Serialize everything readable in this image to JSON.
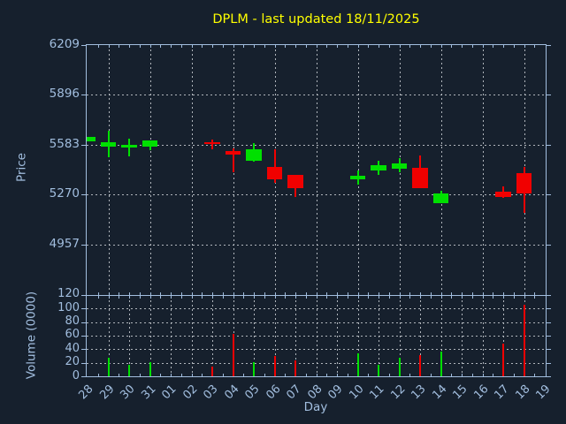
{
  "title": "DPLM - last updated 18/11/2025",
  "chart_data": {
    "type": "candlestick",
    "title": "DPLM - last updated 18/11/2025",
    "xlabel": "Day",
    "grid": true,
    "price_axis": {
      "label": "Price",
      "ticks": [
        6209,
        5896,
        5583,
        5270,
        4957
      ],
      "ylim": [
        4640,
        6209
      ]
    },
    "volume_axis": {
      "label": "Volume (0000)",
      "ticks": [
        120,
        100,
        80,
        60,
        40,
        20,
        0
      ],
      "ylim": [
        0,
        120
      ]
    },
    "days": [
      "28",
      "29",
      "30",
      "31",
      "01",
      "02",
      "03",
      "04",
      "05",
      "06",
      "07",
      "08",
      "09",
      "10",
      "11",
      "12",
      "13",
      "14",
      "15",
      "16",
      "17",
      "18",
      "19"
    ],
    "candles": [
      {
        "day": "28",
        "open": 5605,
        "high": 5632,
        "low": 5605,
        "close": 5632,
        "volume": null,
        "direction": "up"
      },
      {
        "day": "29",
        "open": 5570,
        "high": 5668,
        "low": 5502,
        "close": 5600,
        "volume": 27,
        "direction": "up"
      },
      {
        "day": "30",
        "open": 5566,
        "high": 5621,
        "low": 5511,
        "close": 5581,
        "volume": 17,
        "direction": "up"
      },
      {
        "day": "31",
        "open": 5568,
        "high": 5608,
        "low": 5548,
        "close": 5608,
        "volume": 21,
        "direction": "up"
      },
      {
        "day": "03",
        "open": 5597,
        "high": 5612,
        "low": 5552,
        "close": 5585,
        "volume": 14,
        "direction": "down"
      },
      {
        "day": "04",
        "open": 5540,
        "high": 5557,
        "low": 5409,
        "close": 5522,
        "volume": 62,
        "direction": "down"
      },
      {
        "day": "05",
        "open": 5483,
        "high": 5593,
        "low": 5474,
        "close": 5553,
        "volume": 21,
        "direction": "up"
      },
      {
        "day": "06",
        "open": 5441,
        "high": 5551,
        "low": 5344,
        "close": 5367,
        "volume": 30,
        "direction": "down"
      },
      {
        "day": "07",
        "open": 5394,
        "high": 5394,
        "low": 5253,
        "close": 5311,
        "volume": 23,
        "direction": "down"
      },
      {
        "day": "10",
        "open": 5366,
        "high": 5422,
        "low": 5330,
        "close": 5385,
        "volume": 34,
        "direction": "up"
      },
      {
        "day": "11",
        "open": 5419,
        "high": 5483,
        "low": 5391,
        "close": 5452,
        "volume": 17,
        "direction": "up"
      },
      {
        "day": "12",
        "open": 5434,
        "high": 5496,
        "low": 5409,
        "close": 5465,
        "volume": 28,
        "direction": "up"
      },
      {
        "day": "13",
        "open": 5437,
        "high": 5514,
        "low": 5312,
        "close": 5312,
        "volume": 31,
        "direction": "down"
      },
      {
        "day": "14",
        "open": 5216,
        "high": 5295,
        "low": 5216,
        "close": 5275,
        "volume": 36,
        "direction": "up"
      },
      {
        "day": "17",
        "open": 5289,
        "high": 5318,
        "low": 5250,
        "close": 5256,
        "volume": 48,
        "direction": "down"
      },
      {
        "day": "18",
        "open": 5404,
        "high": 5442,
        "low": 5152,
        "close": 5277,
        "volume": 105,
        "direction": "down"
      }
    ],
    "colors": {
      "up": "#00e000",
      "down": "#f10000",
      "background": "#16202d",
      "axis": "#a2bedf",
      "grid": "#b9bec4",
      "title": "#ffff00"
    }
  }
}
